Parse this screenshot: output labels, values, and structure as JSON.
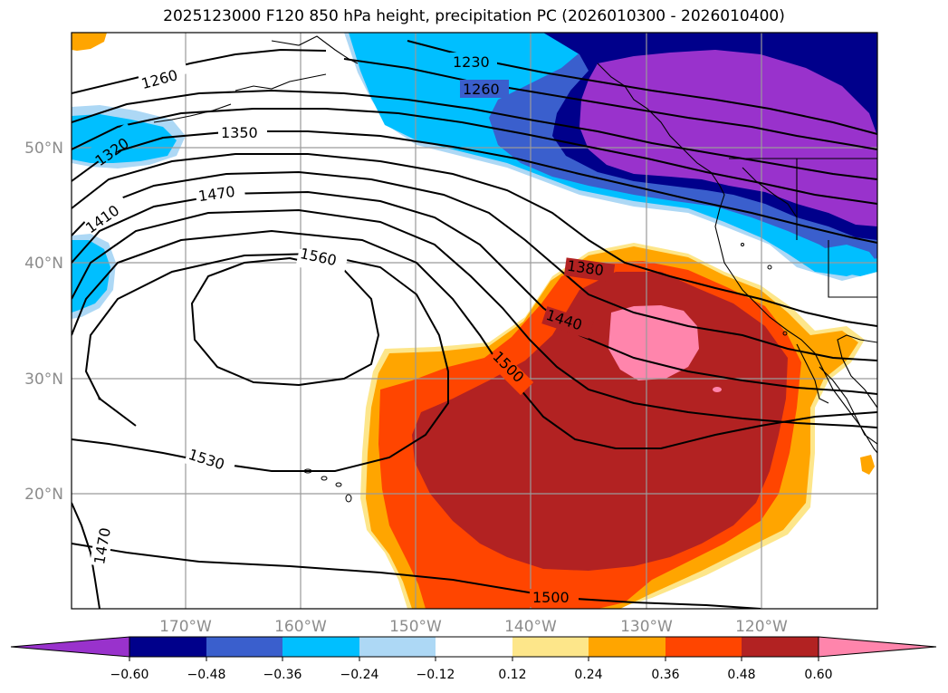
{
  "title": "2025123000 F120 850 hPa height, precipitation PC (2026010300 - 2026010400)",
  "map": {
    "lon_ticks": [
      "170°W",
      "160°W",
      "150°W",
      "140°W",
      "130°W",
      "120°W"
    ],
    "lat_ticks": [
      "20°N",
      "30°N",
      "40°N",
      "50°N"
    ],
    "grid": true
  },
  "height_contours": {
    "levels_labeled": [
      "1230",
      "1260",
      "1260",
      "1320",
      "1350",
      "1410",
      "1470",
      "1560",
      "1380",
      "1440",
      "1500",
      "1530",
      "1500",
      "1470"
    ]
  },
  "colorbar": {
    "ticks": [
      "−0.60",
      "−0.48",
      "−0.36",
      "−0.24",
      "−0.12",
      "0.12",
      "0.24",
      "0.36",
      "0.48",
      "0.60"
    ],
    "colors": [
      "#9932cc",
      "#00008b",
      "#3a5fcd",
      "#00bfff",
      "#add8f5",
      "#ffffff",
      "#fde68a",
      "#ffa500",
      "#ff4500",
      "#b22222",
      "#ff85ac"
    ],
    "extend": "both"
  }
}
